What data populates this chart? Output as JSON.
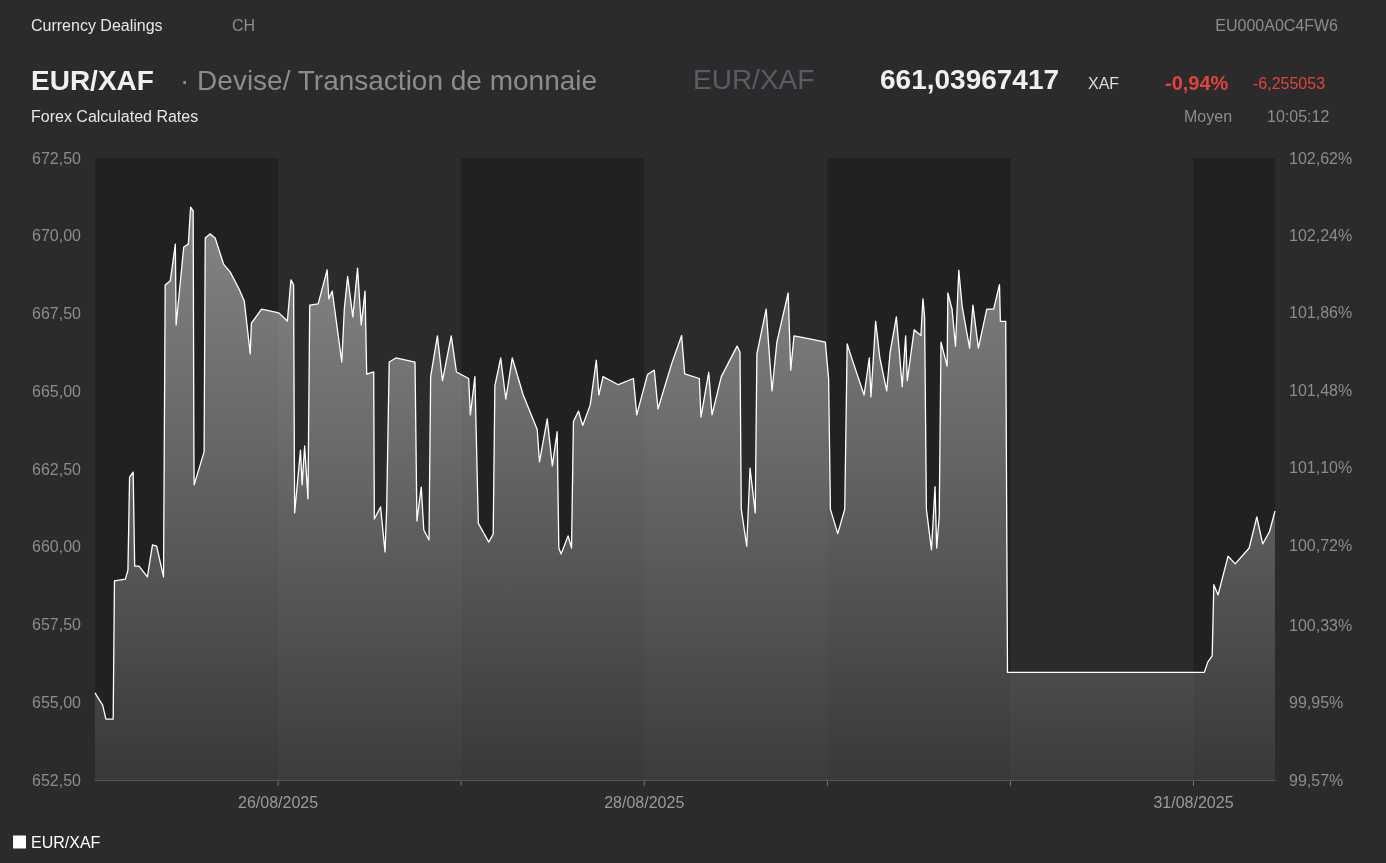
{
  "chart_data": {
    "type": "area",
    "title": "EUR/XAF",
    "subtitle": "· Devise/ Transaction de monnaie",
    "annotations": [
      "Currency Dealings",
      "CH",
      "EU000A0C4FW6",
      "EUR/XAF",
      "661,03967417",
      "XAF",
      "-0,94%",
      "-6,255053",
      "Forex Calculated Rates",
      "Moyen",
      "10:05:12"
    ],
    "x": [
      "2025-08-25T00:00",
      "2025-08-25T01:00",
      "2025-08-25T01:26",
      "2025-08-25T02:23",
      "2025-08-25T02:33",
      "2025-08-25T03:59",
      "2025-08-25T04:19",
      "2025-08-25T04:32",
      "2025-08-25T05:00",
      "2025-08-25T05:12",
      "2025-08-25T05:46",
      "2025-08-25T06:52",
      "2025-08-25T07:32",
      "2025-08-25T08:05",
      "2025-08-25T08:59",
      "2025-08-25T09:12",
      "2025-08-25T09:52",
      "2025-08-25T10:32",
      "2025-08-25T10:38",
      "2025-08-25T11:38",
      "2025-08-25T12:14",
      "2025-08-25T12:32",
      "2025-08-25T12:52",
      "2025-08-25T12:58",
      "2025-08-25T13:00",
      "2025-08-25T14:18",
      "2025-08-25T14:27",
      "2025-08-25T15:04",
      "2025-08-25T15:45",
      "2025-08-25T16:51",
      "2025-08-25T17:44",
      "2025-08-25T18:53",
      "2025-08-25T19:34",
      "2025-08-25T20:21",
      "2025-08-25T20:30",
      "2025-08-25T21:50",
      "2025-08-26T00:06",
      "2025-08-26T01:13",
      "2025-08-26T01:41",
      "2025-08-26T02:02",
      "2025-08-26T02:10",
      "2025-08-26T02:28",
      "2025-08-26T02:56",
      "2025-08-26T03:09",
      "2025-08-26T03:29",
      "2025-08-26T03:55",
      "2025-08-26T04:09",
      "2025-08-26T05:15",
      "2025-08-26T06:26",
      "2025-08-26T06:39",
      "2025-08-26T07:06",
      "2025-08-26T08:21",
      "2025-08-26T08:41",
      "2025-08-26T09:07",
      "2025-08-26T09:48",
      "2025-08-26T10:25",
      "2025-08-26T10:54",
      "2025-08-26T11:24",
      "2025-08-26T11:37",
      "2025-08-26T12:32",
      "2025-08-26T12:37",
      "2025-08-26T13:26",
      "2025-08-26T14:01",
      "2025-08-26T14:14",
      "2025-08-26T14:34",
      "2025-08-26T15:27",
      "2025-08-26T17:57",
      "2025-08-26T18:12",
      "2025-08-26T18:46",
      "2025-08-26T19:06",
      "2025-08-26T19:47",
      "2025-08-26T20:00",
      "2025-08-26T20:53",
      "2025-08-26T21:33",
      "2025-08-26T22:42",
      "2025-08-26T23:23",
      "2025-08-27T00:59",
      "2025-08-27T01:12",
      "2025-08-27T01:48",
      "2025-08-27T02:15",
      "2025-08-27T03:37",
      "2025-08-27T04:12",
      "2025-08-27T04:25",
      "2025-08-27T05:11",
      "2025-08-27T05:51",
      "2025-08-27T06:42",
      "2025-08-27T08:08",
      "2025-08-27T09:58",
      "2025-08-27T10:16",
      "2025-08-27T11:17",
      "2025-08-27T11:57",
      "2025-08-27T12:35",
      "2025-08-27T12:48",
      "2025-08-27T13:06",
      "2025-08-27T14:01",
      "2025-08-27T14:28",
      "2025-08-27T14:43",
      "2025-08-27T15:23",
      "2025-08-27T15:56",
      "2025-08-27T16:55",
      "2025-08-27T17:43",
      "2025-08-27T18:03",
      "2025-08-27T18:36",
      "2025-08-27T20:36",
      "2025-08-27T22:35",
      "2025-08-27T23:01",
      "2025-08-28T00:26",
      "2025-08-28T01:19",
      "2025-08-28T01:48",
      "2025-08-28T03:35",
      "2025-08-28T04:54",
      "2025-08-28T05:18",
      "2025-08-28T07:13",
      "2025-08-28T07:26",
      "2025-08-28T08:27",
      "2025-08-28T08:53",
      "2025-08-28T10:06",
      "2025-08-28T12:10",
      "2025-08-28T12:33",
      "2025-08-28T12:43",
      "2025-08-28T13:26",
      "2025-08-28T13:52",
      "2025-08-28T14:33",
      "2025-08-28T14:46",
      "2025-08-28T15:59",
      "2025-08-28T16:19",
      "2025-08-28T16:45",
      "2025-08-28T17:23",
      "2025-08-28T18:52",
      "2025-08-28T19:12",
      "2025-08-28T19:38",
      "2025-08-28T21:12",
      "2025-08-28T23:44",
      "2025-08-29T00:10",
      "2025-08-29T00:24",
      "2025-08-29T01:22",
      "2025-08-29T02:17",
      "2025-08-29T02:36",
      "2025-08-29T03:17",
      "2025-08-29T04:49",
      "2025-08-29T05:30",
      "2025-08-29T05:43",
      "2025-08-29T06:20",
      "2025-08-29T06:53",
      "2025-08-29T07:47",
      "2025-08-29T08:14",
      "2025-08-29T09:03",
      "2025-08-29T09:49",
      "2025-08-29T10:16",
      "2025-08-29T10:29",
      "2025-08-29T11:23",
      "2025-08-29T12:16",
      "2025-08-29T12:32",
      "2025-08-29T12:45",
      "2025-08-29T12:59",
      "2025-08-29T13:39",
      "2025-08-29T14:07",
      "2025-08-29T14:20",
      "2025-08-29T14:40",
      "2025-08-29T14:54",
      "2025-08-29T15:42",
      "2025-08-29T15:48",
      "2025-08-29T16:21",
      "2025-08-29T16:48",
      "2025-08-29T17:14",
      "2025-08-29T17:41",
      "2025-08-29T18:39",
      "2025-08-29T19:05",
      "2025-08-29T19:48",
      "2025-08-29T20:54",
      "2025-08-29T21:48",
      "2025-08-29T22:34",
      "2025-08-29T22:41",
      "2025-08-29T23:23",
      "2025-08-29T23:37",
      "2025-08-31T01:25",
      "2025-08-31T01:52",
      "2025-08-31T02:27",
      "2025-08-31T02:40",
      "2025-08-31T03:13",
      "2025-08-31T04:32",
      "2025-08-31T05:28",
      "2025-08-31T07:18",
      "2025-08-31T08:18",
      "2025-08-31T09:04",
      "2025-08-31T09:58",
      "2025-08-31T10:41"
    ],
    "series": [
      {
        "name": "EUR/XAF",
        "color": "#ffffff",
        "values": [
          655.3,
          654.91,
          654.46,
          654.46,
          658.9,
          658.96,
          659.25,
          662.24,
          662.4,
          659.38,
          659.38,
          659.03,
          660.06,
          660.02,
          659.03,
          668.42,
          668.55,
          669.73,
          667.13,
          669.64,
          669.73,
          670.92,
          670.8,
          662.92,
          661.99,
          663.05,
          669.93,
          670.06,
          669.93,
          669.09,
          668.83,
          668.29,
          667.9,
          666.2,
          667.19,
          667.64,
          667.52,
          667.26,
          668.58,
          668.42,
          661.09,
          661.86,
          663.11,
          661.99,
          663.24,
          661.54,
          667.77,
          667.81,
          668.9,
          667.97,
          668.22,
          665.94,
          667.64,
          668.69,
          667.39,
          668.96,
          667.13,
          668.22,
          665.55,
          665.62,
          660.89,
          661.28,
          659.83,
          661.21,
          665.94,
          666.07,
          665.94,
          660.83,
          661.92,
          660.54,
          660.22,
          665.47,
          666.78,
          665.34,
          666.78,
          665.62,
          665.41,
          664.24,
          665.47,
          660.75,
          660.15,
          660.41,
          665.17,
          666.07,
          664.75,
          666.07,
          664.88,
          663.77,
          662.73,
          664.11,
          662.6,
          663.7,
          659.96,
          659.77,
          660.35,
          659.96,
          664.03,
          664.36,
          663.9,
          664.56,
          666.0,
          664.88,
          665.47,
          665.21,
          665.41,
          664.24,
          665.54,
          665.68,
          664.43,
          665.88,
          666.79,
          665.56,
          665.41,
          664.17,
          665.61,
          664.24,
          665.47,
          666.45,
          666.26,
          661.21,
          660.02,
          662.53,
          661.09,
          666.2,
          667.64,
          666.45,
          665.01,
          666.58,
          668.16,
          665.68,
          666.78,
          666.71,
          666.58,
          665.41,
          661.21,
          660.42,
          661.21,
          666.52,
          666.0,
          664.88,
          666.07,
          664.82,
          667.25,
          666.07,
          665.01,
          666.26,
          667.39,
          665.15,
          666.78,
          665.34,
          666.98,
          666.79,
          667.97,
          667.39,
          661.21,
          659.9,
          661.93,
          659.96,
          660.96,
          666.58,
          665.81,
          668.16,
          667.64,
          666.45,
          668.89,
          667.71,
          666.39,
          667.77,
          666.39,
          667.64,
          667.64,
          668.43,
          667.25,
          667.25,
          655.96,
          655.96,
          656.29,
          656.49,
          658.78,
          658.45,
          659.7,
          659.45,
          659.96,
          660.96,
          660.09,
          660.49,
          661.15
        ]
      }
    ],
    "xlim": [
      "2025-08-25T00:00",
      "2025-08-31T10:41"
    ],
    "xticks": [
      {
        "value": "2025-08-26",
        "label": "26/08/2025"
      },
      {
        "value": "2025-08-27",
        "label": null
      },
      {
        "value": "2025-08-28",
        "label": "28/08/2025"
      },
      {
        "value": "2025-08-29",
        "label": null
      },
      {
        "value": "2025-08-30",
        "label": null
      },
      {
        "value": "2025-08-31",
        "label": "31/08/2025"
      }
    ],
    "ylim": [
      652.5,
      672.5
    ],
    "yticks": [
      {
        "value": 652.5,
        "label": "652,50"
      },
      {
        "value": 655,
        "label": "655,00"
      },
      {
        "value": 657.5,
        "label": "657,50"
      },
      {
        "value": 660,
        "label": "660,00"
      },
      {
        "value": 662.5,
        "label": "662,50"
      },
      {
        "value": 665,
        "label": "665,00"
      },
      {
        "value": 667.5,
        "label": "667,50"
      },
      {
        "value": 670,
        "label": "670,00"
      },
      {
        "value": 672.5,
        "label": "672,50"
      }
    ],
    "y2lim": [
      99.57,
      102.62
    ],
    "y2ticks": [
      {
        "value": 99.57,
        "label": "99,57%"
      },
      {
        "value": 99.95,
        "label": "99,95%"
      },
      {
        "value": 100.33,
        "label": "100,33%"
      },
      {
        "value": 100.72,
        "label": "100,72%"
      },
      {
        "value": 101.1,
        "label": "101,10%"
      },
      {
        "value": 101.48,
        "label": "101,48%"
      },
      {
        "value": 101.86,
        "label": "101,86%"
      },
      {
        "value": 102.24,
        "label": "102,24%"
      },
      {
        "value": 102.62,
        "label": "102,62%"
      }
    ],
    "bands": [
      {
        "axis": "x",
        "from": "2025-08-25",
        "to": "2025-08-26",
        "color": "#212121"
      },
      {
        "axis": "x",
        "from": "2025-08-27",
        "to": "2025-08-28",
        "color": "#212121"
      },
      {
        "axis": "x",
        "from": "2025-08-29",
        "to": "2025-08-30",
        "color": "#212121"
      },
      {
        "axis": "x",
        "from": "2025-08-31",
        "to": "2025-08-31T10:41",
        "color": "#212121"
      }
    ],
    "grid": false,
    "legend": "bottom left"
  }
}
